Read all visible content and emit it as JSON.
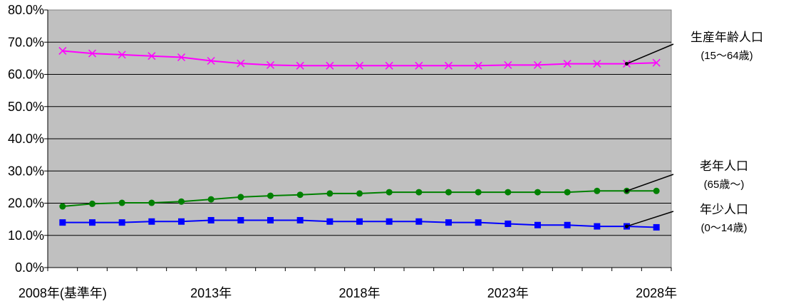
{
  "chart_data": {
    "type": "line",
    "title": "",
    "xlabel": "",
    "ylabel": "",
    "ylim": [
      0,
      80
    ],
    "y_ticks": [
      "0.0%",
      "10.0%",
      "20.0%",
      "30.0%",
      "40.0%",
      "50.0%",
      "60.0%",
      "70.0%",
      "80.0%"
    ],
    "x_categories": [
      2008,
      2009,
      2010,
      2011,
      2012,
      2013,
      2014,
      2015,
      2016,
      2017,
      2018,
      2019,
      2020,
      2021,
      2022,
      2023,
      2024,
      2025,
      2026,
      2027,
      2028
    ],
    "x_tick_labels": [
      {
        "year": 2008,
        "label": "2008年(基準年)"
      },
      {
        "year": 2013,
        "label": "2013年"
      },
      {
        "year": 2018,
        "label": "2018年"
      },
      {
        "year": 2023,
        "label": "2023年"
      },
      {
        "year": 2028,
        "label": "2028年"
      }
    ],
    "grid": true,
    "background": "#c0c0c0",
    "series": [
      {
        "name": "生産年齢人口",
        "sub": "(15～64歳)",
        "color": "#ff00ff",
        "marker": "x",
        "values": [
          67.3,
          66.5,
          66.1,
          65.7,
          65.3,
          64.2,
          63.4,
          62.9,
          62.7,
          62.7,
          62.7,
          62.7,
          62.7,
          62.7,
          62.7,
          62.9,
          62.9,
          63.3,
          63.3,
          63.3,
          63.6
        ]
      },
      {
        "name": "老年人口",
        "sub": "(65歳～)",
        "color": "#008000",
        "marker": "circle",
        "values": [
          19.0,
          19.8,
          20.1,
          20.1,
          20.5,
          21.2,
          21.9,
          22.3,
          22.6,
          23.0,
          23.0,
          23.4,
          23.4,
          23.4,
          23.4,
          23.4,
          23.4,
          23.4,
          23.8,
          23.8,
          23.8
        ]
      },
      {
        "name": "年少人口",
        "sub": "(0～14歳)",
        "color": "#0000ff",
        "marker": "square",
        "values": [
          14.0,
          14.0,
          14.0,
          14.3,
          14.3,
          14.7,
          14.7,
          14.7,
          14.7,
          14.3,
          14.3,
          14.3,
          14.3,
          14.0,
          14.0,
          13.6,
          13.2,
          13.2,
          12.8,
          12.8,
          12.5
        ]
      }
    ]
  }
}
